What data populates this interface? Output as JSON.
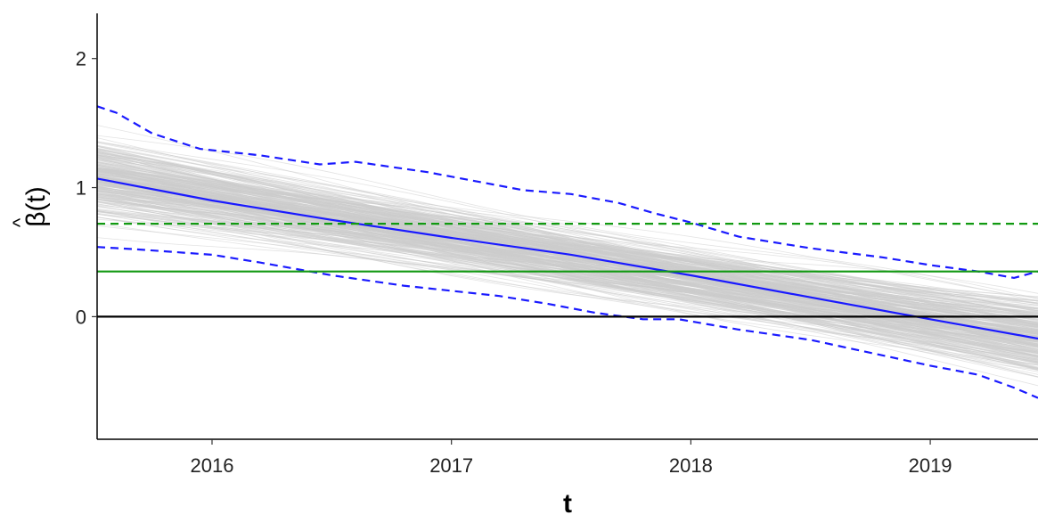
{
  "chart_data": {
    "type": "line",
    "title": "",
    "xlabel": "t",
    "ylabel": "β̂(t)",
    "ylabel_base": "β(t)",
    "ylabel_hat": "^",
    "xlim": [
      2015.52,
      2019.45
    ],
    "ylim": [
      -0.95,
      2.35
    ],
    "x_ticks": [
      2016,
      2017,
      2018,
      2019
    ],
    "x_tick_labels": [
      "2016",
      "2017",
      "2018",
      "2019"
    ],
    "y_ticks": [
      0,
      1,
      2
    ],
    "y_tick_labels": [
      "0",
      "1",
      "2"
    ],
    "grid": false,
    "legend": "none",
    "series": [
      {
        "role": "mean-estimate",
        "style": "solid",
        "color": "#1a1aff",
        "x": [
          2015.52,
          2016.0,
          2016.5,
          2017.0,
          2017.5,
          2018.0,
          2018.5,
          2019.0,
          2019.45
        ],
        "y": [
          1.07,
          0.9,
          0.75,
          0.61,
          0.48,
          0.32,
          0.15,
          -0.02,
          -0.17
        ]
      },
      {
        "role": "upper-band",
        "style": "dashed",
        "color": "#1a1aff",
        "x": [
          2015.52,
          2015.6,
          2015.75,
          2015.95,
          2016.2,
          2016.45,
          2016.6,
          2016.9,
          2017.1,
          2017.3,
          2017.5,
          2017.7,
          2017.85,
          2018.0,
          2018.2,
          2018.5,
          2018.8,
          2019.0,
          2019.2,
          2019.35,
          2019.45
        ],
        "y": [
          1.63,
          1.58,
          1.42,
          1.3,
          1.25,
          1.18,
          1.2,
          1.12,
          1.05,
          0.98,
          0.95,
          0.88,
          0.8,
          0.73,
          0.62,
          0.53,
          0.46,
          0.4,
          0.35,
          0.3,
          0.35
        ]
      },
      {
        "role": "lower-band",
        "style": "dashed",
        "color": "#1a1aff",
        "x": [
          2015.52,
          2015.7,
          2016.0,
          2016.2,
          2016.5,
          2016.8,
          2017.0,
          2017.2,
          2017.4,
          2017.6,
          2017.8,
          2017.95,
          2018.2,
          2018.5,
          2018.8,
          2019.0,
          2019.2,
          2019.35,
          2019.45
        ],
        "y": [
          0.54,
          0.52,
          0.48,
          0.42,
          0.32,
          0.24,
          0.2,
          0.16,
          0.1,
          0.03,
          -0.02,
          -0.02,
          -0.1,
          -0.18,
          -0.3,
          -0.38,
          -0.45,
          -0.55,
          -0.63
        ]
      },
      {
        "role": "reference-dashed",
        "style": "dashed",
        "color": "#119911",
        "x": [
          2015.52,
          2019.45
        ],
        "y": [
          0.72,
          0.72
        ]
      },
      {
        "role": "reference-solid",
        "style": "solid",
        "color": "#119911",
        "x": [
          2015.52,
          2019.45
        ],
        "y": [
          0.35,
          0.35
        ]
      },
      {
        "role": "zero-line",
        "style": "solid",
        "color": "#000000",
        "x": [
          2015.52,
          2019.45
        ],
        "y": [
          0,
          0
        ]
      }
    ],
    "background_curves": {
      "color": "#cccccc",
      "count": 300,
      "mean_start": 1.07,
      "mean_end": -0.17,
      "spread": 0.28
    }
  }
}
